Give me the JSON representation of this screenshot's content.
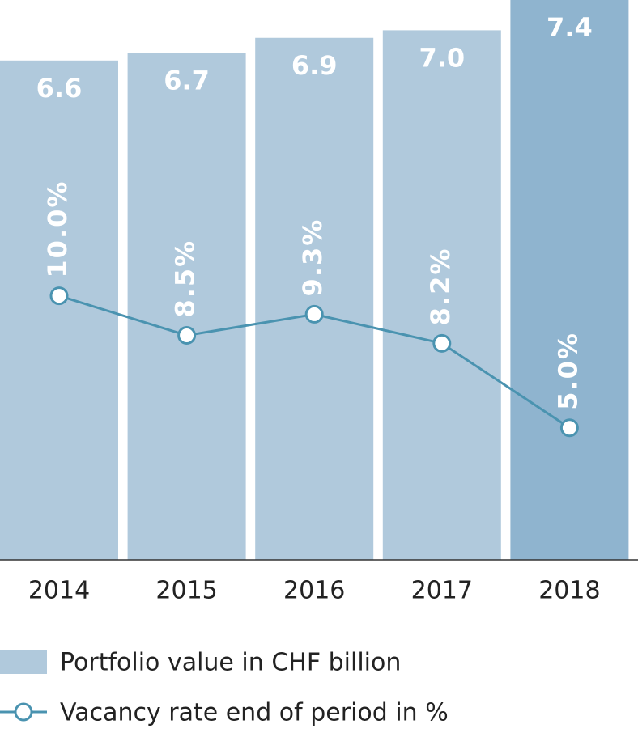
{
  "chart_data": {
    "type": "bar_line",
    "categories": [
      "2014",
      "2015",
      "2016",
      "2017",
      "2018"
    ],
    "series": [
      {
        "name": "Portfolio value in CHF billion",
        "type": "bar",
        "color": "#b0c9dc",
        "colors": [
          "#b0c9dc",
          "#b0c9dc",
          "#b0c9dc",
          "#b0c9dc",
          "#8fb4cf"
        ],
        "values": [
          6.6,
          6.7,
          6.9,
          7.0,
          7.4
        ],
        "value_labels": [
          "6.6",
          "6.7",
          "6.9",
          "7.0",
          "7.4"
        ]
      },
      {
        "name": "Vacancy rate end of period in %",
        "type": "line",
        "color": "#4a93b0",
        "axis": "y2",
        "values": [
          10.0,
          8.5,
          9.3,
          8.2,
          5.0
        ],
        "value_labels": [
          "10.0%",
          "8.5%",
          "9.3%",
          "8.2%",
          "5.0%"
        ]
      }
    ],
    "ylim": [
      0,
      7.4
    ],
    "y2lim": [
      0,
      21.2
    ]
  }
}
